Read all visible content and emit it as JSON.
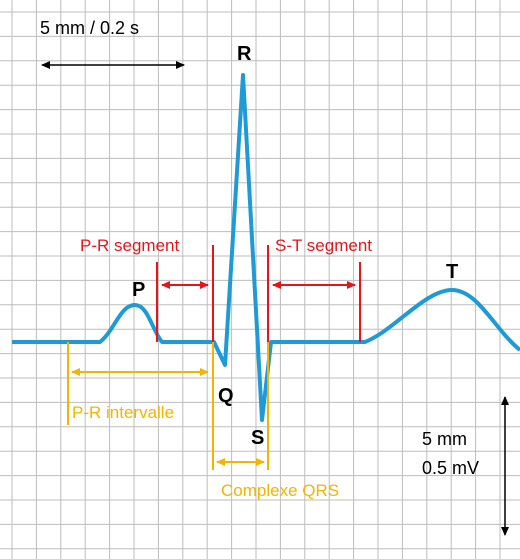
{
  "scale": {
    "time": "5 mm / 0.2 s",
    "amplitude_mm": "5 mm",
    "amplitude_mv": "0.5 mV"
  },
  "waves": {
    "p": "P",
    "q": "Q",
    "r": "R",
    "s": "S",
    "t": "T"
  },
  "segments": {
    "pr_segment": "P-R segment",
    "st_segment": "S-T segment",
    "pr_interval": "P-R intervalle",
    "qrs_complex": "Complexe QRS"
  }
}
